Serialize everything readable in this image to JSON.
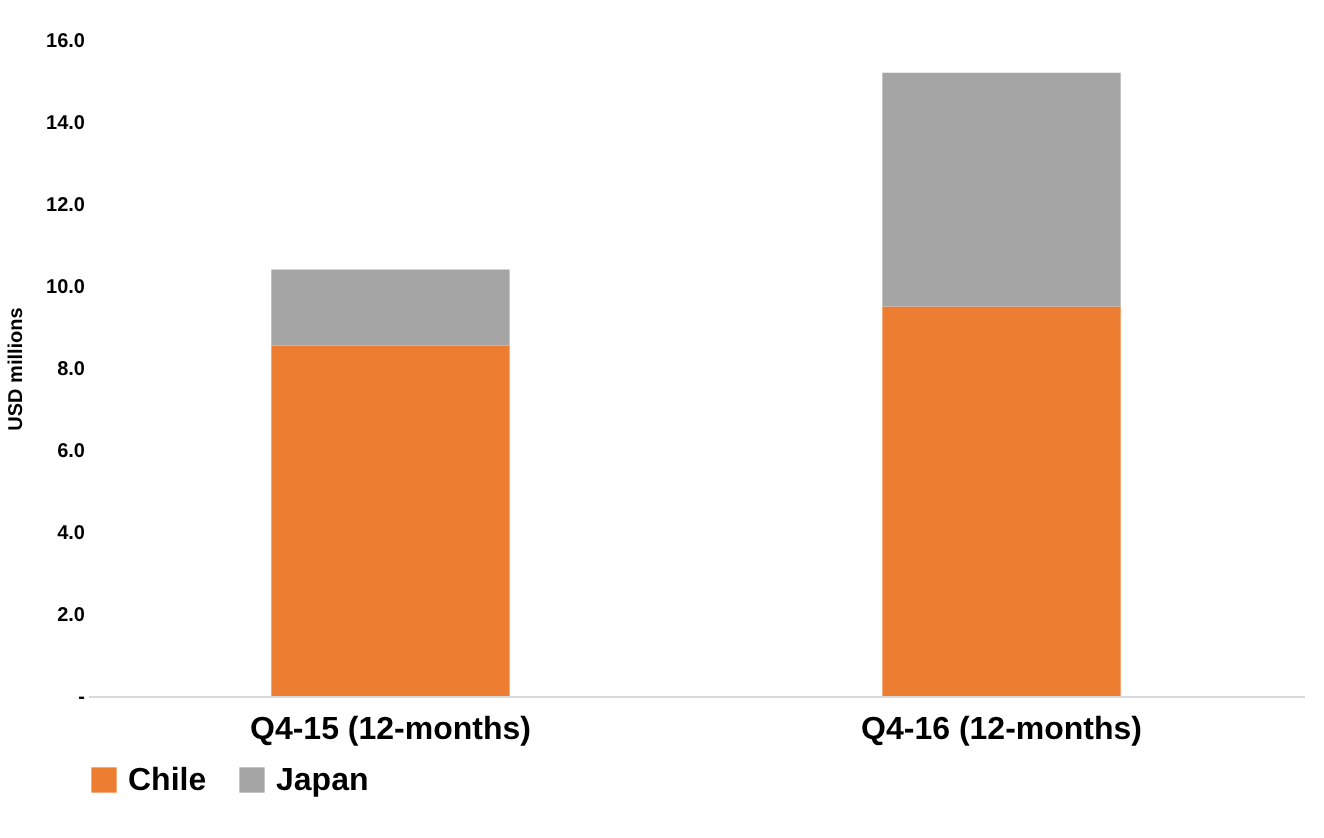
{
  "chart_data": {
    "type": "bar",
    "ylabel": "USD millions",
    "categories": [
      "Q4-15 (12-months)",
      "Q4-16 (12-months)"
    ],
    "series": [
      {
        "name": "Chile",
        "color": "#ed7d31",
        "values": [
          8.55,
          9.5
        ]
      },
      {
        "name": "Japan",
        "color": "#a5a5a5",
        "values": [
          1.85,
          5.7
        ]
      }
    ],
    "stacked": true,
    "ylim": [
      0,
      16
    ],
    "yticks": [
      {
        "value": 0,
        "label": "-"
      },
      {
        "value": 2,
        "label": "2.0"
      },
      {
        "value": 4,
        "label": "4.0"
      },
      {
        "value": 6,
        "label": "6.0"
      },
      {
        "value": 8,
        "label": "8.0"
      },
      {
        "value": 10,
        "label": "10.0"
      },
      {
        "value": 12,
        "label": "12.0"
      },
      {
        "value": 14,
        "label": "14.0"
      },
      {
        "value": 16,
        "label": "16.0"
      }
    ],
    "grid": false,
    "legend": "bottom"
  }
}
